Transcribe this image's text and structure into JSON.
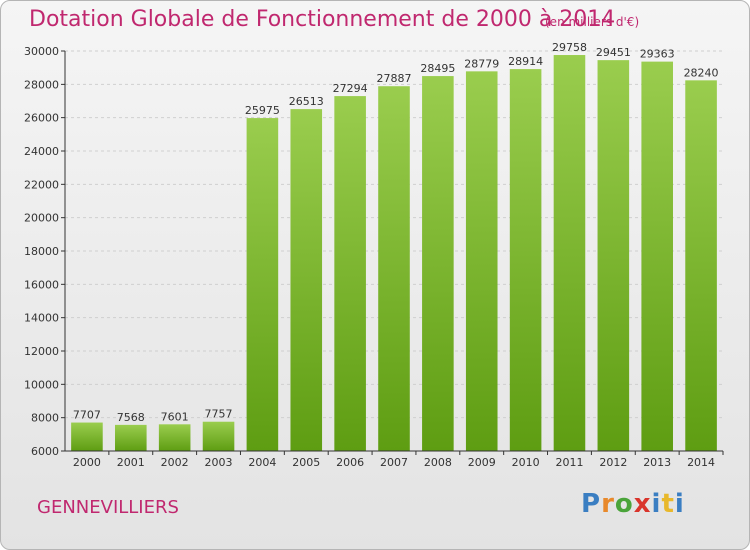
{
  "header": {
    "title": "Dotation Globale de Fonctionnement de 2000 à 2014",
    "unit_note": "(en milliers d'€)"
  },
  "footer": {
    "city": "GENNEVILLIERS",
    "logo_letters": [
      "P",
      "r",
      "o",
      "x",
      "i",
      "t",
      "i"
    ]
  },
  "colors": {
    "title": "#c0286f",
    "bar_top": "#9acd4e",
    "bar_bottom": "#5e9d12",
    "grid": "#cfcfcf",
    "axis": "#333333"
  },
  "chart_data": {
    "type": "bar",
    "title": "Dotation Globale de Fonctionnement de 2000 à 2014",
    "subtitle": "(en milliers d'€)",
    "xlabel": "",
    "ylabel": "",
    "categories": [
      "2000",
      "2001",
      "2002",
      "2003",
      "2004",
      "2005",
      "2006",
      "2007",
      "2008",
      "2009",
      "2010",
      "2011",
      "2012",
      "2013",
      "2014"
    ],
    "values": [
      7707,
      7568,
      7601,
      7757,
      25975,
      26513,
      27294,
      27887,
      28495,
      28779,
      28914,
      29758,
      29451,
      29363,
      28240
    ],
    "ylim": [
      6000,
      30000
    ],
    "yticks": [
      6000,
      8000,
      10000,
      12000,
      14000,
      16000,
      18000,
      20000,
      22000,
      24000,
      26000,
      28000,
      30000
    ],
    "grid": true,
    "data_labels": true
  }
}
